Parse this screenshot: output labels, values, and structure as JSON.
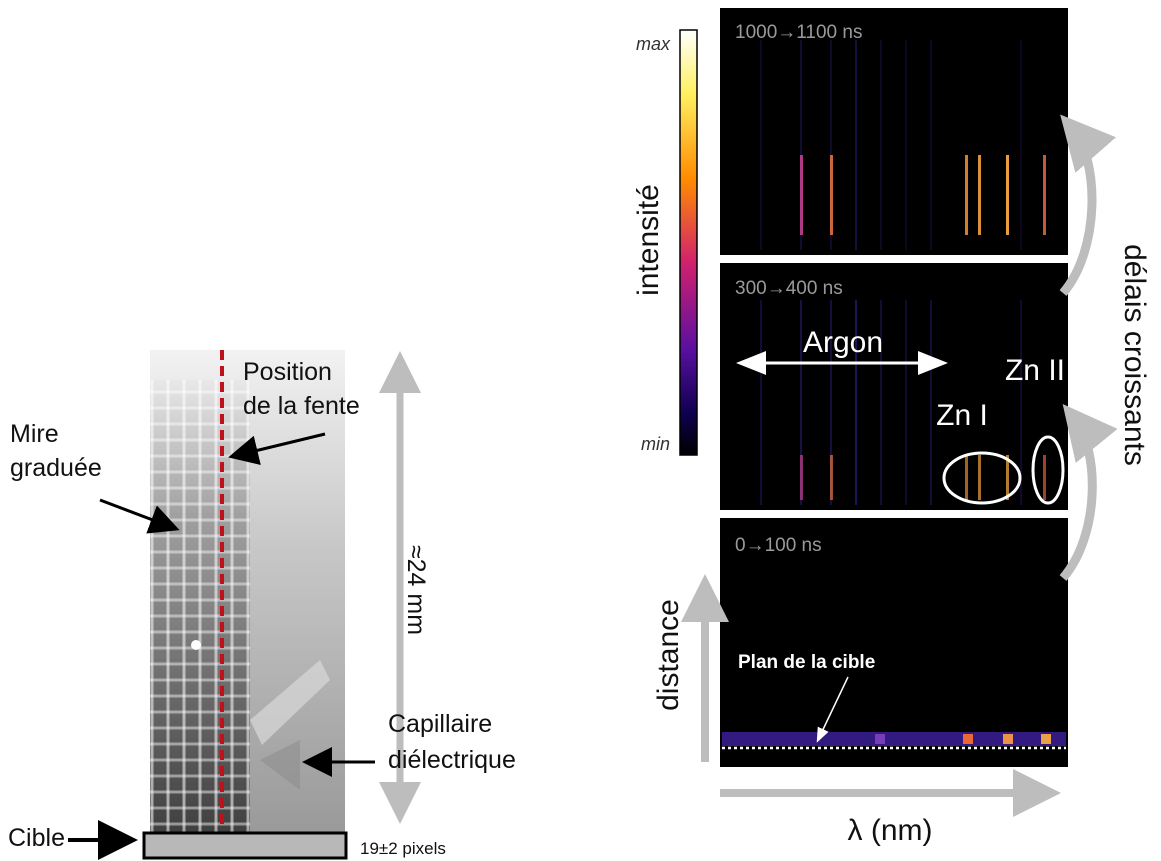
{
  "left": {
    "slit_label": [
      "Position",
      "de la fente"
    ],
    "grid_label": [
      "Mire",
      "graduée"
    ],
    "length_label": "≈24 mm",
    "capillary_label": [
      "Capillaire",
      "diélectrique"
    ],
    "target_label": "Cible",
    "width_label": "19±2 pixels"
  },
  "right": {
    "colorbar": {
      "max": "max",
      "min": "min",
      "title": "intensité"
    },
    "panels": [
      {
        "time": "1000→1100 ns"
      },
      {
        "time": "300→400 ns",
        "argon": "Argon",
        "zn2": "Zn II",
        "zn1": "Zn I"
      },
      {
        "time": "0→100 ns",
        "target_plane": "Plan de la cible"
      }
    ],
    "delay_label": "délais croissants",
    "distance_label": "distance",
    "wavelength_label": "λ (nm)"
  }
}
